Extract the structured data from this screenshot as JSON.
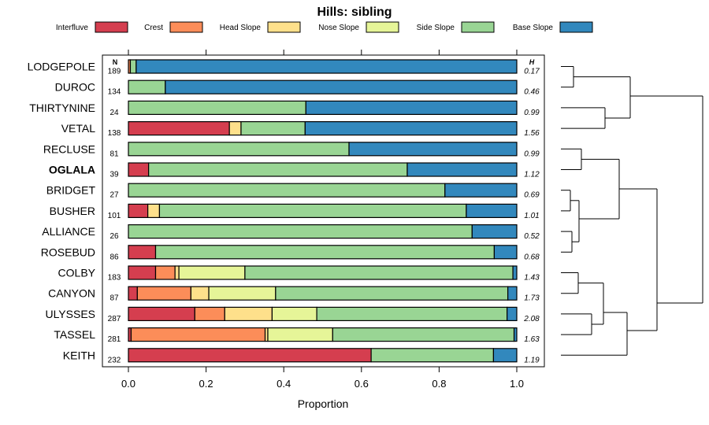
{
  "chart_data": {
    "type": "bar",
    "orientation": "horizontal",
    "stacked": true,
    "title": "Hills: sibling",
    "xlabel": "Proportion",
    "xlim": [
      0,
      1
    ],
    "x_ticks": [
      "0.0",
      "0.2",
      "0.4",
      "0.6",
      "0.8",
      "1.0"
    ],
    "n_header": "N",
    "h_header": "H",
    "legend_position": "top",
    "series": [
      {
        "name": "Interfluve",
        "color": "#D53E4F"
      },
      {
        "name": "Crest",
        "color": "#FC8D59"
      },
      {
        "name": "Head Slope",
        "color": "#FEE08B"
      },
      {
        "name": "Nose Slope",
        "color": "#E6F598"
      },
      {
        "name": "Side Slope",
        "color": "#99D594"
      },
      {
        "name": "Base Slope",
        "color": "#3288BD"
      }
    ],
    "rows": [
      {
        "name": "LODGEPOLE",
        "n": "189",
        "h": "0.17",
        "bold": false,
        "values": [
          0.0,
          0.005,
          0.0,
          0.0,
          0.015,
          0.98
        ]
      },
      {
        "name": "DUROC",
        "n": "134",
        "h": "0.46",
        "bold": false,
        "values": [
          0.0,
          0.0,
          0.0,
          0.0,
          0.095,
          0.905
        ]
      },
      {
        "name": "THIRTYNINE",
        "n": "24",
        "h": "0.99",
        "bold": false,
        "values": [
          0.0,
          0.0,
          0.0,
          0.0,
          0.457,
          0.543
        ]
      },
      {
        "name": "VETAL",
        "n": "138",
        "h": "1.56",
        "bold": false,
        "values": [
          0.26,
          0.0,
          0.03,
          0.0,
          0.165,
          0.545
        ]
      },
      {
        "name": "RECLUSE",
        "n": "81",
        "h": "0.99",
        "bold": false,
        "values": [
          0.0,
          0.0,
          0.0,
          0.0,
          0.568,
          0.432
        ]
      },
      {
        "name": "OGLALA",
        "n": "39",
        "h": "1.12",
        "bold": true,
        "values": [
          0.052,
          0.0,
          0.0,
          0.0,
          0.666,
          0.282
        ]
      },
      {
        "name": "BRIDGET",
        "n": "27",
        "h": "0.69",
        "bold": false,
        "values": [
          0.0,
          0.0,
          0.0,
          0.0,
          0.815,
          0.185
        ]
      },
      {
        "name": "BUSHER",
        "n": "101",
        "h": "1.01",
        "bold": false,
        "values": [
          0.05,
          0.0,
          0.03,
          0.0,
          0.79,
          0.13
        ]
      },
      {
        "name": "ALLIANCE",
        "n": "26",
        "h": "0.52",
        "bold": false,
        "values": [
          0.0,
          0.0,
          0.0,
          0.0,
          0.885,
          0.115
        ]
      },
      {
        "name": "ROSEBUD",
        "n": "86",
        "h": "0.68",
        "bold": false,
        "values": [
          0.07,
          0.0,
          0.0,
          0.0,
          0.872,
          0.058
        ]
      },
      {
        "name": "COLBY",
        "n": "183",
        "h": "1.43",
        "bold": false,
        "values": [
          0.07,
          0.05,
          0.01,
          0.17,
          0.69,
          0.01
        ]
      },
      {
        "name": "CANYON",
        "n": "87",
        "h": "1.73",
        "bold": false,
        "values": [
          0.023,
          0.138,
          0.046,
          0.172,
          0.598,
          0.023
        ]
      },
      {
        "name": "ULYSSES",
        "n": "287",
        "h": "2.08",
        "bold": false,
        "values": [
          0.171,
          0.077,
          0.122,
          0.115,
          0.49,
          0.025
        ]
      },
      {
        "name": "TASSEL",
        "n": "281",
        "h": "1.63",
        "bold": false,
        "values": [
          0.007,
          0.345,
          0.007,
          0.167,
          0.467,
          0.007
        ]
      },
      {
        "name": "KEITH",
        "n": "232",
        "h": "1.19",
        "bold": false,
        "values": [
          0.625,
          0.0,
          0.0,
          0.0,
          0.315,
          0.06
        ]
      }
    ]
  }
}
